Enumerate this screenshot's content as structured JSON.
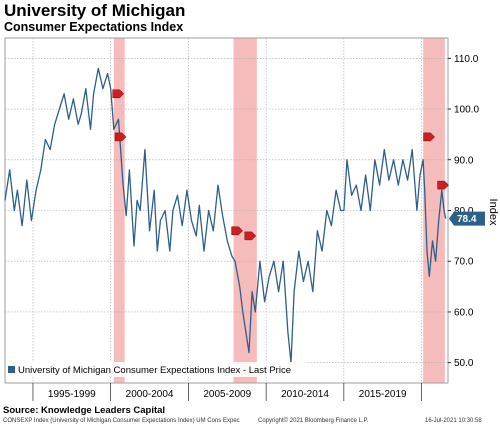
{
  "header": {
    "title": "University of Michigan",
    "subtitle": "Consumer Expectations Index"
  },
  "source": "Source: Knowledge Leaders Capital",
  "footer": {
    "left": "CONSEXP Index (University of Michigan Consumer Expectations Index) UM Cons Expec",
    "center": "Copyright© 2021 Bloomberg Finance L.P.",
    "right": "16-Jul-2021 10:30:58"
  },
  "chart_data": {
    "type": "line",
    "ylabel": "Index",
    "ylim": [
      46,
      114
    ],
    "xlim": [
      1993.2,
      2021.7
    ],
    "yticks": [
      50,
      60,
      70,
      80,
      90,
      100,
      110
    ],
    "ytick_labels": [
      "50.0",
      "60.0",
      "70.0",
      "80.0",
      "90.0",
      "100.0",
      "110.0"
    ],
    "xtick_labels": [
      {
        "label": "1995-1999",
        "center": 1997.5
      },
      {
        "label": "2000-2004",
        "center": 2002.5
      },
      {
        "label": "2005-2009",
        "center": 2007.5
      },
      {
        "label": "2010-2014",
        "center": 2012.5
      },
      {
        "label": "2015-2019",
        "center": 2017.5
      }
    ],
    "grid": true,
    "legend": "bottom-left",
    "series": [
      {
        "name": "University of Michigan Consumer Expectations Index - Last Price",
        "color": "#2d5f8b",
        "x": [
          1993.2,
          1993.5,
          1993.8,
          1994.0,
          1994.3,
          1994.6,
          1994.9,
          1995.2,
          1995.5,
          1995.8,
          1996.1,
          1996.4,
          1996.7,
          1997.0,
          1997.3,
          1997.6,
          1997.9,
          1998.1,
          1998.4,
          1998.7,
          1998.9,
          1999.2,
          1999.5,
          1999.8,
          2000.0,
          2000.2,
          2000.5,
          2000.8,
          2001.0,
          2001.2,
          2001.5,
          2001.7,
          2001.9,
          2002.2,
          2002.5,
          2002.8,
          2003.0,
          2003.2,
          2003.5,
          2003.8,
          2004.0,
          2004.3,
          2004.6,
          2004.9,
          2005.2,
          2005.5,
          2005.7,
          2006.0,
          2006.3,
          2006.6,
          2006.9,
          2007.2,
          2007.5,
          2007.8,
          2008.0,
          2008.3,
          2008.5,
          2008.7,
          2008.9,
          2009.1,
          2009.3,
          2009.6,
          2009.9,
          2010.2,
          2010.5,
          2010.8,
          2011.1,
          2011.4,
          2011.6,
          2011.8,
          2012.1,
          2012.4,
          2012.7,
          2013.0,
          2013.3,
          2013.6,
          2013.9,
          2014.2,
          2014.5,
          2014.8,
          2015.0,
          2015.2,
          2015.5,
          2015.8,
          2016.1,
          2016.4,
          2016.7,
          2017.0,
          2017.3,
          2017.6,
          2017.9,
          2018.2,
          2018.5,
          2018.8,
          2019.1,
          2019.4,
          2019.7,
          2019.9,
          2020.1,
          2020.2,
          2020.35,
          2020.5,
          2020.7,
          2020.9,
          2021.1,
          2021.3,
          2021.45,
          2021.55
        ],
        "values": [
          82,
          88,
          80,
          84,
          77,
          86,
          78,
          84,
          88,
          94,
          92,
          97,
          100,
          103,
          98,
          102,
          97,
          99,
          104,
          96,
          103,
          108,
          104,
          107,
          104,
          96,
          98,
          85,
          79,
          88,
          73,
          82,
          80,
          92,
          76,
          84,
          72,
          78,
          80,
          72,
          80,
          83,
          77,
          84,
          78,
          75,
          81,
          72,
          80,
          76,
          85,
          79,
          74,
          71,
          70,
          65,
          60,
          56,
          52,
          64,
          60,
          70,
          62,
          67,
          70,
          64,
          70,
          56,
          50,
          64,
          72,
          66,
          70,
          64,
          76,
          72,
          80,
          77,
          84,
          80,
          80,
          90,
          83,
          85,
          80,
          87,
          80,
          90,
          85,
          92,
          86,
          90,
          85,
          90,
          86,
          92,
          80,
          87,
          90,
          84,
          72,
          67,
          74,
          70,
          78,
          84,
          80,
          78.4
        ]
      }
    ],
    "recessions": [
      [
        2000.2,
        2000.9
      ],
      [
        2007.9,
        2009.4
      ],
      [
        2020.1,
        2021.5
      ]
    ],
    "last_value": "78.4"
  }
}
